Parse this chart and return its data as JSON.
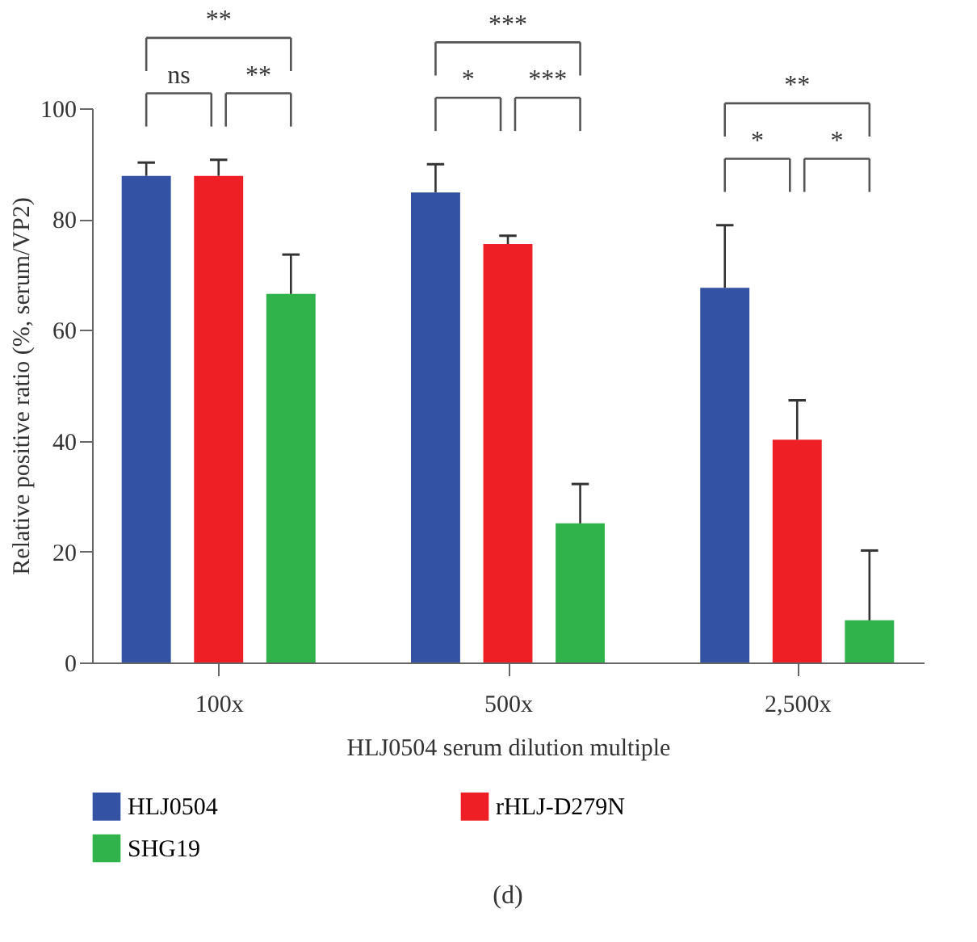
{
  "chart_data": {
    "type": "bar",
    "title": "(d)",
    "xlabel": "HLJ0504 serum dilution multiple",
    "ylabel": "Relative positive ratio (%, serum/VP2)",
    "categories": [
      "100x",
      "500x",
      "2,500x"
    ],
    "series": [
      {
        "name": "HLJ0504",
        "color": "#3452a4",
        "values": [
          87.8,
          84.8,
          67.6
        ],
        "errors": [
          [
            87.8,
            90.2
          ],
          [
            84.8,
            89.9
          ],
          [
            67.6,
            78.9
          ]
        ]
      },
      {
        "name": "rHLJ-D279N",
        "color": "#ee1f25",
        "values": [
          87.8,
          75.5,
          40.2
        ],
        "errors": [
          [
            87.8,
            90.7
          ],
          [
            75.5,
            77.0
          ],
          [
            40.2,
            47.3
          ]
        ]
      },
      {
        "name": "SHG19",
        "color": "#31b34b",
        "values": [
          66.5,
          25.1,
          7.6
        ],
        "errors": [
          [
            66.5,
            73.6
          ],
          [
            25.1,
            32.2
          ],
          [
            7.6,
            20.2
          ]
        ]
      }
    ],
    "annotations": [
      "**",
      "ns",
      "**",
      "***",
      "*",
      "***",
      "**",
      "*",
      "*"
    ],
    "ylim": [
      0,
      100
    ],
    "yticks": [
      0,
      20,
      40,
      60,
      80,
      100
    ],
    "grid": false,
    "legend": "bottom"
  }
}
